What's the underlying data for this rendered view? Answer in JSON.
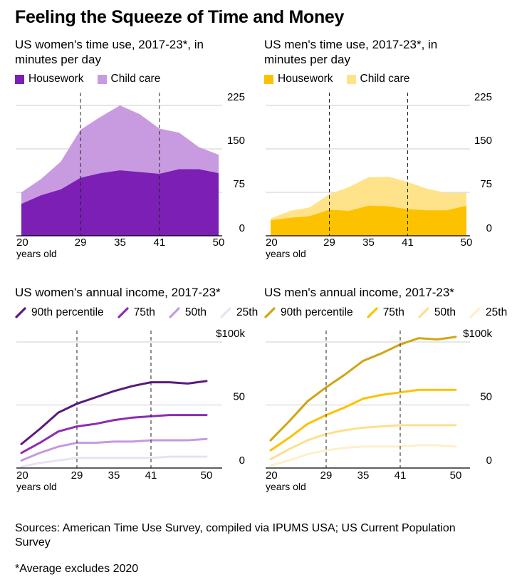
{
  "title": "Feeling the Squeeze of Time and Money",
  "subtitles": {
    "women_time": "US women's time use, 2017-23*, in minutes per day",
    "men_time": "US men's time use, 2017-23*, in minutes per day",
    "women_income": "US women's annual income, 2017-23*",
    "men_income": "US men's annual income, 2017-23*"
  },
  "legends": {
    "women_time": [
      {
        "label": "Housework",
        "color": "#7b1fb5"
      },
      {
        "label": "Child care",
        "color": "#c89be0"
      }
    ],
    "men_time": [
      {
        "label": "Housework",
        "color": "#fcc200"
      },
      {
        "label": "Child care",
        "color": "#ffe38a"
      }
    ],
    "women_income": [
      {
        "label": "90th percentile",
        "color": "#5b1a7e"
      },
      {
        "label": "75th",
        "color": "#8b2db5"
      },
      {
        "label": "50th",
        "color": "#c49ae0"
      },
      {
        "label": "25th",
        "color": "#e9e2f2"
      }
    ],
    "men_income": [
      {
        "label": "90th percentile",
        "color": "#d0a511"
      },
      {
        "label": "75th",
        "color": "#fcc200"
      },
      {
        "label": "50th",
        "color": "#fbe08f"
      },
      {
        "label": "25th",
        "color": "#fdf0c9"
      }
    ]
  },
  "axis": {
    "x_ticks": [
      "20",
      "29",
      "35",
      "41",
      "50"
    ],
    "x_unit": "years old",
    "time_y_ticks": [
      "0",
      "75",
      "150",
      "225"
    ],
    "income_y_ticks": [
      "0",
      "50",
      "$100k"
    ]
  },
  "source": "Sources: American Time Use Survey, compiled via IPUMS USA; US Current Population Survey",
  "footnote": "*Average excludes 2020",
  "chart_data": [
    {
      "type": "area",
      "title": "US women's time use, 2017-23*, in minutes per day",
      "x": [
        20,
        23,
        26,
        29,
        32,
        35,
        38,
        41,
        44,
        47,
        50
      ],
      "ylim": [
        0,
        225
      ],
      "stacked": true,
      "vlines": [
        29,
        41
      ],
      "series": [
        {
          "name": "Housework",
          "values": [
            55,
            70,
            80,
            100,
            108,
            113,
            110,
            107,
            115,
            115,
            108
          ]
        },
        {
          "name": "Child care",
          "values": [
            20,
            28,
            48,
            83,
            97,
            112,
            100,
            78,
            63,
            38,
            32
          ]
        }
      ]
    },
    {
      "type": "area",
      "title": "US men's time use, 2017-23*, in minutes per day",
      "x": [
        20,
        23,
        26,
        29,
        32,
        35,
        38,
        41,
        44,
        47,
        50
      ],
      "ylim": [
        0,
        225
      ],
      "stacked": true,
      "vlines": [
        29,
        41
      ],
      "series": [
        {
          "name": "Housework",
          "values": [
            27,
            31,
            34,
            45,
            43,
            52,
            51,
            46,
            44,
            44,
            52
          ]
        },
        {
          "name": "Child care",
          "values": [
            3,
            12,
            15,
            27,
            41,
            49,
            51,
            47,
            37,
            30,
            22
          ]
        }
      ]
    },
    {
      "type": "line",
      "title": "US women's annual income, 2017-23*",
      "x": [
        20,
        23,
        26,
        29,
        32,
        35,
        38,
        41,
        44,
        47,
        50
      ],
      "ylim": [
        0,
        100
      ],
      "y_unit": "$ thousands",
      "vlines": [
        29,
        41
      ],
      "series": [
        {
          "name": "90th percentile",
          "values": [
            19,
            31,
            44,
            51,
            56,
            61,
            65,
            68,
            68,
            67,
            69
          ]
        },
        {
          "name": "75th",
          "values": [
            12,
            20,
            29,
            33,
            35,
            38,
            40,
            41,
            42,
            42,
            42
          ]
        },
        {
          "name": "50th",
          "values": [
            6,
            12,
            17,
            20,
            20,
            21,
            21,
            22,
            22,
            22,
            23
          ]
        },
        {
          "name": "25th",
          "values": [
            1,
            4,
            6,
            8,
            8,
            8,
            8,
            8,
            9,
            9,
            9
          ]
        }
      ]
    },
    {
      "type": "line",
      "title": "US men's annual income, 2017-23*",
      "x": [
        20,
        23,
        26,
        29,
        32,
        35,
        38,
        41,
        44,
        47,
        50
      ],
      "ylim": [
        0,
        100
      ],
      "y_unit": "$ thousands",
      "vlines": [
        29,
        41
      ],
      "series": [
        {
          "name": "90th percentile",
          "values": [
            22,
            37,
            53,
            64,
            74,
            85,
            91,
            98,
            103,
            102,
            104
          ]
        },
        {
          "name": "75th",
          "values": [
            14,
            24,
            35,
            42,
            48,
            55,
            58,
            60,
            62,
            62,
            62
          ]
        },
        {
          "name": "50th",
          "values": [
            7,
            15,
            22,
            27,
            30,
            32,
            33,
            34,
            34,
            34,
            34
          ]
        },
        {
          "name": "25th",
          "values": [
            2,
            6,
            11,
            14,
            16,
            17,
            17,
            17,
            18,
            18,
            17
          ]
        }
      ]
    }
  ]
}
